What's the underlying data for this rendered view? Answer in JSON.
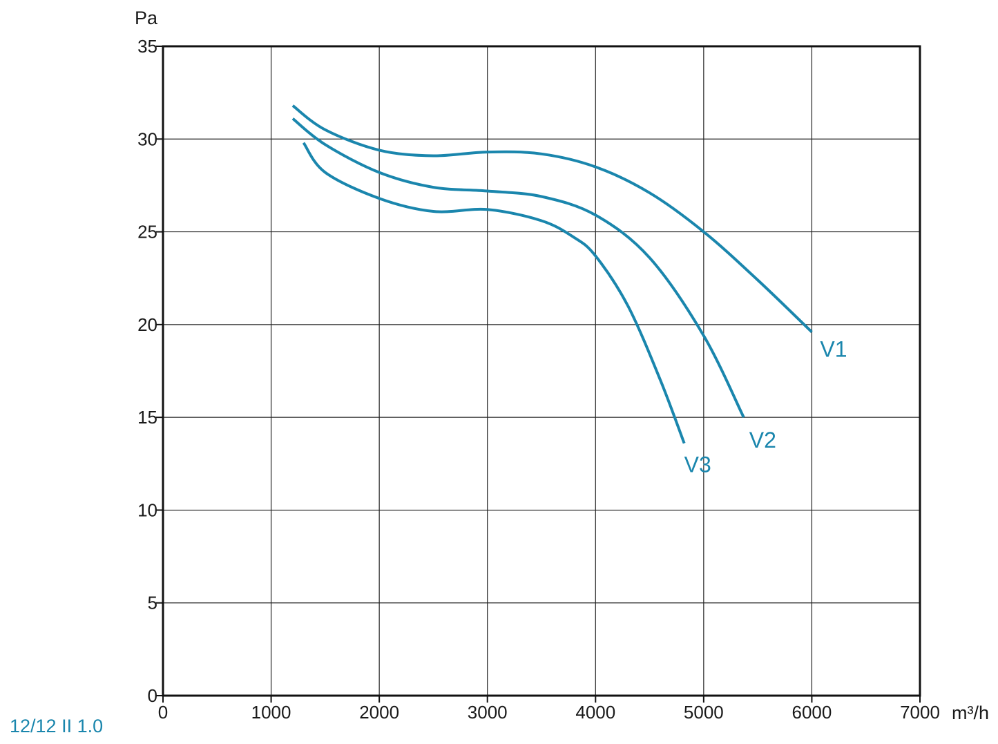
{
  "chart_data": {
    "type": "line",
    "title": "",
    "xlabel": "m³/h",
    "ylabel": "Pa",
    "xlim": [
      0,
      7000
    ],
    "ylim": [
      0,
      35
    ],
    "x_ticks": [
      0,
      1000,
      2000,
      3000,
      4000,
      5000,
      6000,
      7000
    ],
    "y_ticks": [
      0,
      5,
      10,
      15,
      20,
      25,
      30,
      35
    ],
    "grid": true,
    "series_color": "#1a86ad",
    "series": [
      {
        "name": "V1",
        "x": [
          1200,
          1500,
          2000,
          2500,
          3000,
          3500,
          4000,
          4500,
          5000,
          5500,
          6000
        ],
        "y": [
          31.8,
          30.5,
          29.4,
          29.1,
          29.3,
          29.2,
          28.5,
          27.1,
          25.0,
          22.4,
          19.6
        ]
      },
      {
        "name": "V2",
        "x": [
          1200,
          1500,
          2000,
          2500,
          3000,
          3500,
          4000,
          4500,
          5000,
          5370
        ],
        "y": [
          31.1,
          29.7,
          28.2,
          27.4,
          27.2,
          26.9,
          25.9,
          23.6,
          19.4,
          15.0
        ]
      },
      {
        "name": "V3",
        "x": [
          1300,
          1500,
          2000,
          2500,
          3000,
          3500,
          3800,
          4000,
          4300,
          4600,
          4820
        ],
        "y": [
          29.8,
          28.2,
          26.8,
          26.1,
          26.2,
          25.6,
          24.7,
          23.7,
          21.0,
          17.0,
          13.6
        ]
      }
    ]
  },
  "model_label": "12/12 II 1.0"
}
